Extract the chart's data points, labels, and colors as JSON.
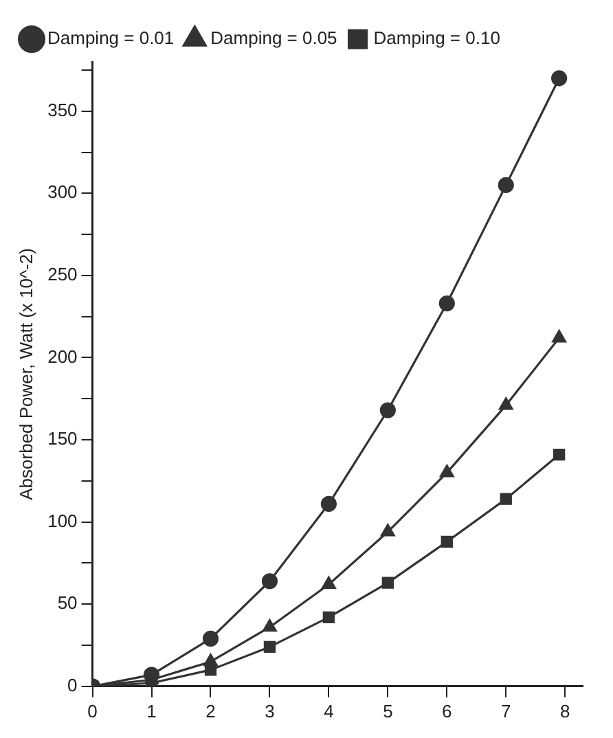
{
  "chart_data": {
    "type": "line",
    "ylabel": "Absorbed Power, Watt (x 10^-2)",
    "x": [
      0,
      1,
      2,
      3,
      4,
      5,
      6,
      7,
      7.9
    ],
    "xlim": [
      0,
      8.3
    ],
    "xticks": [
      0,
      1,
      2,
      3,
      4,
      5,
      6,
      7,
      8
    ],
    "ylim": [
      0,
      380
    ],
    "yticks": [
      0,
      {
        "value": 25,
        "label": null
      },
      50,
      {
        "value": 75,
        "label": null
      },
      100,
      {
        "value": 125,
        "label": null
      },
      150,
      {
        "value": 175,
        "label": null
      },
      200,
      {
        "value": 225,
        "label": null
      },
      250,
      {
        "value": 275,
        "label": null
      },
      300,
      {
        "value": 325,
        "label": null
      },
      350,
      {
        "value": 375,
        "label": null
      }
    ],
    "grid": false,
    "legend": "top left",
    "line_style": "solid",
    "series": [
      {
        "name": "Damping = 0.01",
        "color": "#333333",
        "marker": "circle",
        "values": [
          0,
          7,
          29,
          64,
          111,
          168,
          233,
          305,
          370
        ]
      },
      {
        "name": "Damping = 0.05",
        "color": "#333333",
        "marker": "triangle",
        "values": [
          0,
          4,
          15,
          36,
          62,
          94,
          130,
          171,
          212
        ]
      },
      {
        "name": "Damping = 0.10",
        "color": "#333333",
        "marker": "square",
        "values": [
          0,
          2,
          10,
          24,
          42,
          63,
          88,
          114,
          141
        ]
      }
    ]
  }
}
